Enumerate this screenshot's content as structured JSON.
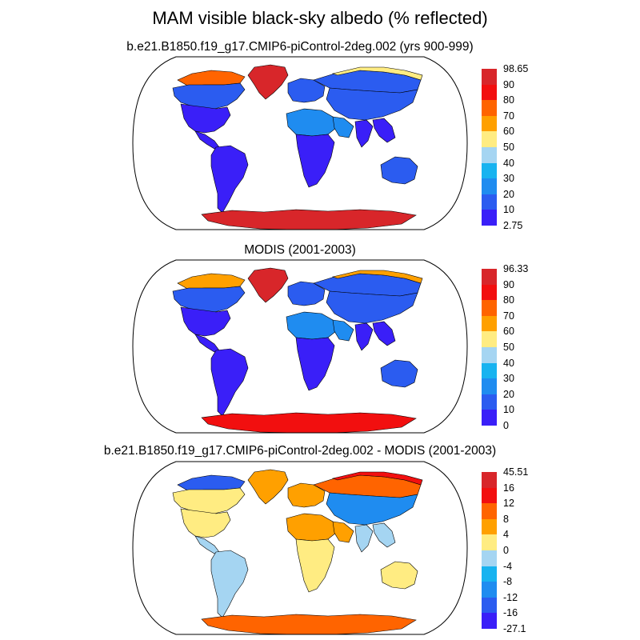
{
  "title": "MAM visible black-sky albedo (% reflected)",
  "colors": {
    "land_outline": "#000000",
    "frame": "#000000",
    "background": "#ffffff"
  },
  "panels": [
    {
      "id": "model",
      "subtitle": "b.e21.B1850.f19_g17.CMIP6-piControl-2deg.002 (yrs 900-999)",
      "colorbar": {
        "labels": [
          "98.65",
          "90",
          "80",
          "70",
          "60",
          "50",
          "40",
          "30",
          "20",
          "10",
          "2.75"
        ],
        "colors": [
          "#d8262a",
          "#f20f0f",
          "#ff6400",
          "#ffa000",
          "#ffec82",
          "#a5d5f2",
          "#17b3f0",
          "#1f8cf0",
          "#2b5cf0",
          "#3a1ff8"
        ]
      },
      "regions": {
        "greenland": "#d8262a",
        "north_canada": "#ff6400",
        "canada": "#2b5cf0",
        "usa": "#3a1ff8",
        "central_america": "#3a1ff8",
        "south_america": "#3a1ff8",
        "europe": "#2b5cf0",
        "siberia": "#2b5cf0",
        "arctic_siberia": "#ffec82",
        "asia": "#2b5cf0",
        "sahara": "#1f8cf0",
        "arabia": "#1f8cf0",
        "africa_south": "#3a1ff8",
        "india": "#3a1ff8",
        "se_asia": "#3a1ff8",
        "australia": "#2b5cf0",
        "antarctica": "#d8262a"
      }
    },
    {
      "id": "obs",
      "subtitle": "MODIS (2001-2003)",
      "colorbar": {
        "labels": [
          "96.33",
          "90",
          "80",
          "70",
          "60",
          "50",
          "40",
          "30",
          "20",
          "10",
          "0"
        ],
        "colors": [
          "#d8262a",
          "#f20f0f",
          "#ff6400",
          "#ffa000",
          "#ffec82",
          "#a5d5f2",
          "#17b3f0",
          "#1f8cf0",
          "#2b5cf0",
          "#3a1ff8"
        ]
      },
      "regions": {
        "greenland": "#d8262a",
        "north_canada": "#ffa000",
        "canada": "#2b5cf0",
        "usa": "#3a1ff8",
        "central_america": "#3a1ff8",
        "south_america": "#3a1ff8",
        "europe": "#2b5cf0",
        "siberia": "#2b5cf0",
        "arctic_siberia": "#ffa000",
        "asia": "#2b5cf0",
        "sahara": "#1f8cf0",
        "arabia": "#1f8cf0",
        "africa_south": "#3a1ff8",
        "india": "#3a1ff8",
        "se_asia": "#3a1ff8",
        "australia": "#2b5cf0",
        "antarctica": "#f20f0f"
      }
    },
    {
      "id": "diff",
      "subtitle": "b.e21.B1850.f19_g17.CMIP6-piControl-2deg.002 - MODIS (2001-2003)",
      "colorbar": {
        "labels": [
          "45.51",
          "16",
          "12",
          "8",
          "4",
          "0",
          "-4",
          "-8",
          "-12",
          "-16",
          "-27.1"
        ],
        "colors": [
          "#d8262a",
          "#f20f0f",
          "#ff6400",
          "#ffa000",
          "#ffec82",
          "#a5d5f2",
          "#17b3f0",
          "#1f8cf0",
          "#2b5cf0",
          "#3a1ff8"
        ]
      },
      "regions": {
        "greenland": "#ffa000",
        "north_canada": "#2b5cf0",
        "canada": "#ffec82",
        "usa": "#ffec82",
        "central_america": "#a5d5f2",
        "south_america": "#a5d5f2",
        "europe": "#ffa000",
        "siberia": "#ff6400",
        "arctic_siberia": "#f20f0f",
        "asia": "#1f8cf0",
        "sahara": "#ffa000",
        "arabia": "#ffa000",
        "africa_south": "#ffec82",
        "india": "#a5d5f2",
        "se_asia": "#a5d5f2",
        "australia": "#ffec82",
        "antarctica": "#ff6400"
      }
    }
  ]
}
